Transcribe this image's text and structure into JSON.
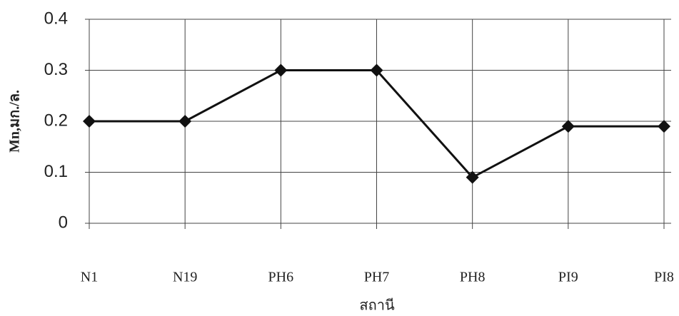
{
  "chart_data": {
    "type": "line",
    "x_label": "สถานี",
    "y_label": "Mn,มก./ล.",
    "categories": [
      "N1",
      "N19",
      "PH6",
      "PH7",
      "PH8",
      "PI9",
      "PI8"
    ],
    "values": [
      0.2,
      0.2,
      0.3,
      0.3,
      0.09,
      0.19,
      0.19
    ],
    "color": "#111111",
    "ylim": [
      0,
      0.4
    ],
    "yticks": [
      0,
      0.1,
      0.2,
      0.3,
      0.4
    ],
    "grid": true
  }
}
